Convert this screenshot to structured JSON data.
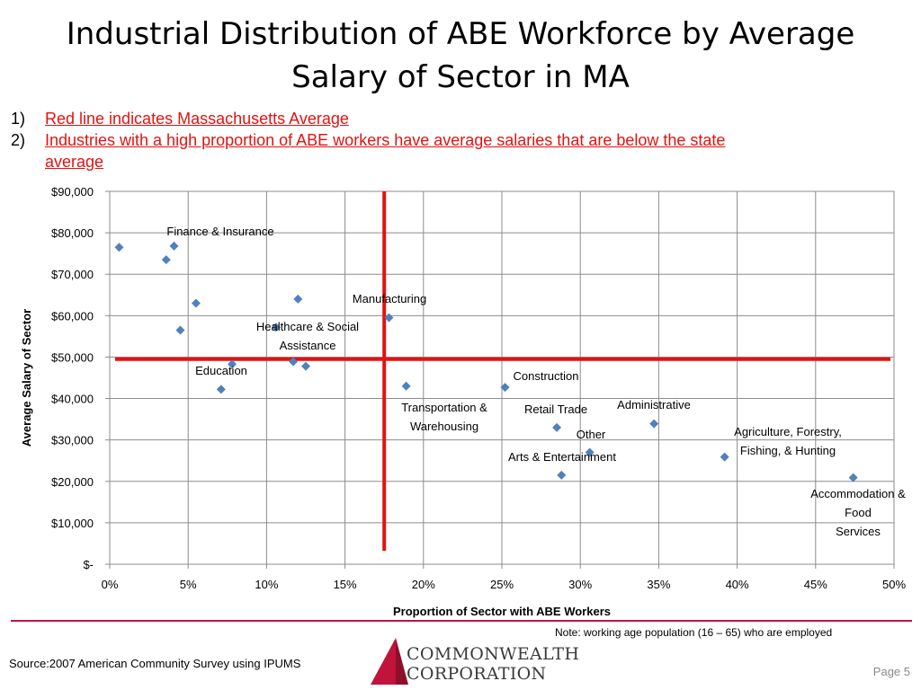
{
  "slide": {
    "title_line1": "Industrial Distribution of ABE Workforce by Average",
    "title_line2": "Salary of Sector in MA",
    "notes": [
      {
        "num": "1)",
        "text": "Red line indicates Massachusetts Average"
      },
      {
        "num": "2)",
        "text": "Industries with a high proportion of ABE workers have average salaries that are below the state"
      },
      {
        "num": "",
        "text": "average"
      }
    ],
    "footnote": "Note: working age population (16 – 65) who are employed",
    "source": "Source:2007 American Community Survey using IPUMS",
    "logo_line1": "COMMONWEALTH",
    "logo_line2": "CORPORATION",
    "page_label": "Page 5"
  },
  "colors": {
    "marker": "#4f81bd",
    "reference_line": "#e31212",
    "grid": "#8c8c8c",
    "footer_rule": "#c0143c",
    "logo_mark": "#c0143c"
  },
  "chart_data": {
    "type": "scatter",
    "xlabel": "Proportion of Sector with ABE Workers",
    "ylabel": "Average Salary of Sector",
    "xlim": [
      0,
      0.5
    ],
    "ylim": [
      0,
      90000
    ],
    "x_ticks": [
      {
        "value": 0,
        "label": "0%"
      },
      {
        "value": 0.05,
        "label": "5%"
      },
      {
        "value": 0.1,
        "label": "10%"
      },
      {
        "value": 0.15,
        "label": "15%"
      },
      {
        "value": 0.2,
        "label": "20%"
      },
      {
        "value": 0.25,
        "label": "25%"
      },
      {
        "value": 0.3,
        "label": "30%"
      },
      {
        "value": 0.35,
        "label": "35%"
      },
      {
        "value": 0.4,
        "label": "40%"
      },
      {
        "value": 0.45,
        "label": "45%"
      },
      {
        "value": 0.5,
        "label": "50%"
      }
    ],
    "y_ticks": [
      {
        "value": 0,
        "label": "$-"
      },
      {
        "value": 10000,
        "label": "$10,000"
      },
      {
        "value": 20000,
        "label": "$20,000"
      },
      {
        "value": 30000,
        "label": "$30,000"
      },
      {
        "value": 40000,
        "label": "$40,000"
      },
      {
        "value": 50000,
        "label": "$50,000"
      },
      {
        "value": 60000,
        "label": "$60,000"
      },
      {
        "value": 70000,
        "label": "$70,000"
      },
      {
        "value": 80000,
        "label": "$80,000"
      },
      {
        "value": 90000,
        "label": "$90,000"
      }
    ],
    "grid": {
      "horizontal": true,
      "vertical": true
    },
    "reference_lines": {
      "x": 0.175,
      "y": 49500
    },
    "points": [
      {
        "x": 0.006,
        "y": 76500
      },
      {
        "x": 0.036,
        "y": 73500
      },
      {
        "x": 0.041,
        "y": 76800
      },
      {
        "x": 0.045,
        "y": 56500
      },
      {
        "x": 0.055,
        "y": 63000
      },
      {
        "x": 0.071,
        "y": 42200
      },
      {
        "x": 0.078,
        "y": 48300
      },
      {
        "x": 0.106,
        "y": 57200
      },
      {
        "x": 0.117,
        "y": 48900
      },
      {
        "x": 0.12,
        "y": 64000
      },
      {
        "x": 0.125,
        "y": 47800
      },
      {
        "x": 0.178,
        "y": 59500
      },
      {
        "x": 0.189,
        "y": 43000
      },
      {
        "x": 0.252,
        "y": 42700
      },
      {
        "x": 0.285,
        "y": 33000
      },
      {
        "x": 0.288,
        "y": 21500
      },
      {
        "x": 0.306,
        "y": 27000
      },
      {
        "x": 0.347,
        "y": 33900
      },
      {
        "x": 0.392,
        "y": 25900
      },
      {
        "x": 0.474,
        "y": 20900
      }
    ],
    "annotations": [
      {
        "text": "Finance & Insurance"
      },
      {
        "text": "Manufacturing"
      },
      {
        "text": "Healthcare & Social Assistance"
      },
      {
        "text": "Education"
      },
      {
        "text": "Construction"
      },
      {
        "text": "Administrative"
      },
      {
        "text": "Transportation & Warehousing"
      },
      {
        "text": "Retail Trade"
      },
      {
        "text": "Other"
      },
      {
        "text": "Agriculture, Forestry, Fishing, & Hunting"
      },
      {
        "text": "Arts & Entertainment"
      },
      {
        "text": "Accommodation & Food Services"
      }
    ]
  }
}
